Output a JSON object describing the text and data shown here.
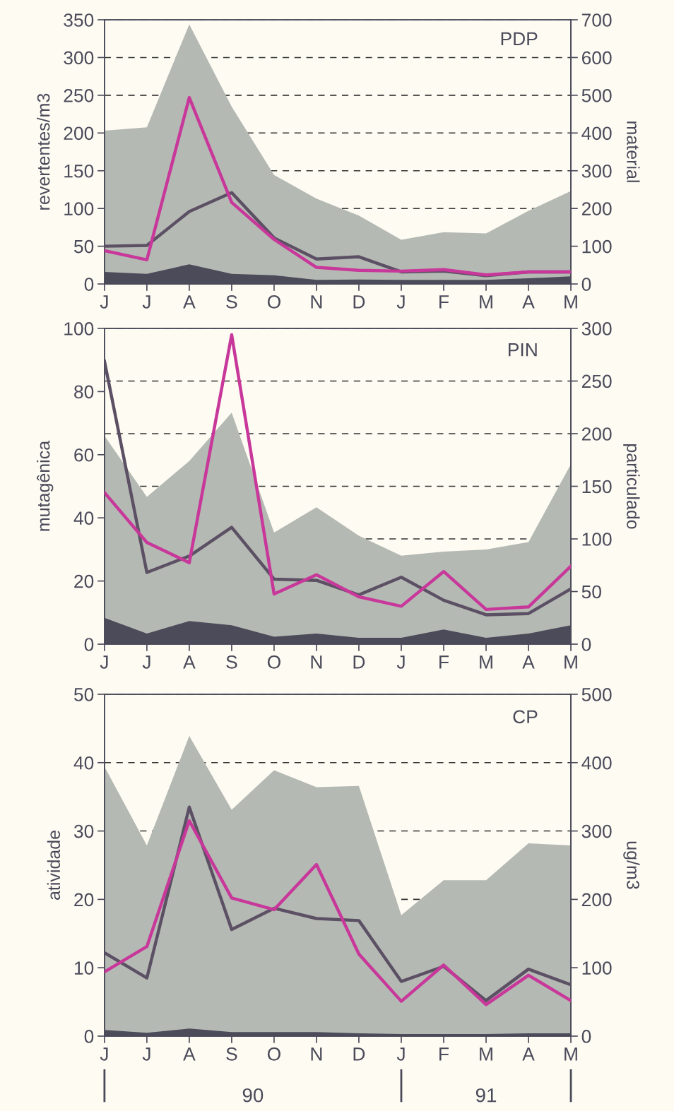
{
  "chart_data": [
    {
      "type": "line",
      "title": "PDP",
      "ylabel": "revertentes/m3",
      "y2label": "material",
      "categories": [
        "J",
        "J",
        "A",
        "S",
        "O",
        "N",
        "D",
        "J",
        "F",
        "M",
        "A",
        "M"
      ],
      "ylim": [
        0,
        350
      ],
      "yticks": [
        0,
        50,
        100,
        150,
        200,
        250,
        300,
        350
      ],
      "y2lim": [
        0,
        700
      ],
      "y2ticks": [
        0,
        100,
        200,
        300,
        400,
        500,
        600,
        700
      ],
      "grid": "y",
      "legend": false,
      "series": [
        {
          "type": "area",
          "axis": "y2",
          "color": "#b5b9b3",
          "values": [
            406,
            415,
            688,
            470,
            289,
            226,
            181,
            117,
            137,
            134,
            194,
            246
          ]
        },
        {
          "type": "area",
          "axis": "y2",
          "color": "#4b4b5a",
          "values": [
            32,
            27,
            52,
            27,
            23,
            11,
            12,
            11,
            11,
            11,
            15,
            20
          ]
        },
        {
          "color": "#5c5064",
          "values": [
            50,
            51,
            96,
            121,
            61,
            33,
            36,
            16,
            17,
            11,
            16,
            16
          ]
        },
        {
          "color": "#c8379a",
          "values": [
            44,
            32,
            247,
            108,
            59,
            22,
            18,
            17,
            19,
            12,
            16,
            16
          ]
        }
      ]
    },
    {
      "type": "line",
      "title": "PIN",
      "ylabel": "mutagênica",
      "y2label": "particulado",
      "categories": [
        "J",
        "J",
        "A",
        "S",
        "O",
        "N",
        "D",
        "J",
        "F",
        "M",
        "A",
        "M"
      ],
      "ylim": [
        0,
        100
      ],
      "yticks": [
        0,
        20,
        40,
        60,
        80,
        100
      ],
      "y2lim": [
        0,
        300
      ],
      "y2ticks": [
        0,
        50,
        100,
        150,
        200,
        250,
        300
      ],
      "grid": "y",
      "legend": false,
      "series": [
        {
          "type": "area",
          "axis": "y2",
          "color": "#b5b9b3",
          "values": [
            198,
            140,
            174,
            220,
            106,
            130,
            103,
            84,
            88,
            90,
            97,
            171
          ]
        },
        {
          "type": "area",
          "axis": "y2",
          "color": "#4b4b5a",
          "values": [
            25,
            10,
            22,
            18,
            7,
            10,
            6,
            6,
            14,
            6,
            10,
            18
          ]
        },
        {
          "color": "#5c5064",
          "values": [
            89.6,
            22.7,
            27.9,
            37,
            20.6,
            20.2,
            15.6,
            21.2,
            13.9,
            9.3,
            9.7,
            17.5
          ]
        },
        {
          "color": "#c8379a",
          "values": [
            48,
            32.2,
            25.8,
            98,
            15.9,
            22,
            15,
            12,
            23,
            11,
            11.8,
            24.7
          ]
        }
      ]
    },
    {
      "type": "line",
      "title": "CP",
      "ylabel": "atividade",
      "y2label": "ug/m3",
      "categories": [
        "J",
        "J",
        "A",
        "S",
        "O",
        "N",
        "D",
        "J",
        "F",
        "M",
        "A",
        "M"
      ],
      "ylim": [
        0,
        50
      ],
      "yticks": [
        0,
        10,
        20,
        30,
        40,
        50
      ],
      "y2lim": [
        0,
        500
      ],
      "y2ticks": [
        0,
        100,
        200,
        300,
        400,
        500
      ],
      "grid": "y",
      "legend": false,
      "annotations": [
        "90",
        "91"
      ],
      "series": [
        {
          "type": "area",
          "axis": "y2",
          "color": "#b5b9b3",
          "values": [
            394,
            279,
            439,
            331,
            389,
            364,
            366,
            177,
            228,
            228,
            282,
            279
          ]
        },
        {
          "type": "area",
          "axis": "y2",
          "color": "#4b4b5a",
          "values": [
            9,
            5,
            11,
            6,
            6,
            6,
            4,
            3,
            3,
            3,
            4,
            4
          ]
        },
        {
          "color": "#5c5064",
          "values": [
            12.2,
            8.5,
            33.5,
            15.6,
            18.7,
            17.2,
            16.9,
            8,
            10.2,
            5.2,
            9.8,
            7.5
          ]
        },
        {
          "color": "#c8379a",
          "values": [
            9.4,
            13.1,
            31.5,
            20.2,
            18.5,
            25.1,
            12,
            5.1,
            10.4,
            4.6,
            8.9,
            5.2
          ]
        }
      ]
    }
  ]
}
